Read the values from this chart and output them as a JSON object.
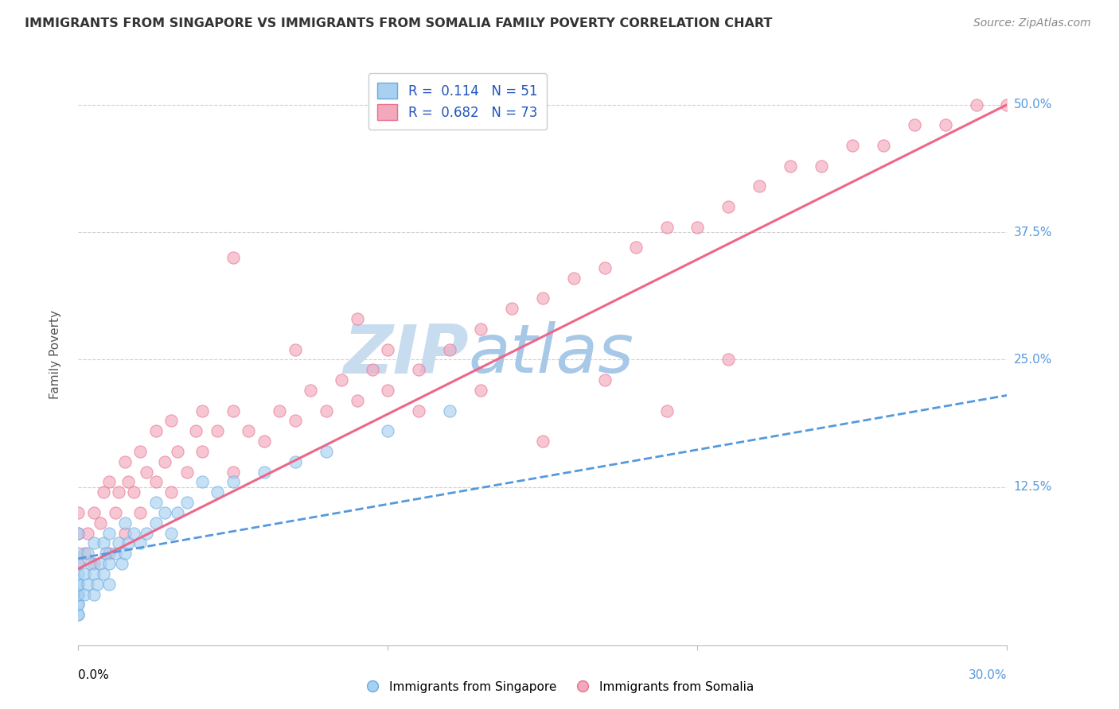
{
  "title": "IMMIGRANTS FROM SINGAPORE VS IMMIGRANTS FROM SOMALIA FAMILY POVERTY CORRELATION CHART",
  "source": "Source: ZipAtlas.com",
  "ylabel": "Family Poverty",
  "xaxis_label_left": "0.0%",
  "xaxis_label_right": "30.0%",
  "yaxis_ticks_vals": [
    0.125,
    0.25,
    0.375,
    0.5
  ],
  "yaxis_ticks_labels": [
    "12.5%",
    "25.0%",
    "37.5%",
    "50.0%"
  ],
  "xlim": [
    0.0,
    0.3
  ],
  "ylim": [
    -0.03,
    0.54
  ],
  "singapore_R": 0.114,
  "singapore_N": 51,
  "somalia_R": 0.682,
  "somalia_N": 73,
  "singapore_color": "#A8D0F0",
  "somalia_color": "#F4A8BC",
  "singapore_edge_color": "#6AAAE0",
  "somalia_edge_color": "#E87090",
  "singapore_line_color": "#5599DD",
  "somalia_line_color": "#EE6688",
  "watermark_zip": "ZIP",
  "watermark_atlas": "atlas",
  "watermark_color_zip": "#C8DCF0",
  "watermark_color_atlas": "#A8C8E8",
  "background_color": "#FFFFFF",
  "grid_color": "#CCCCCC",
  "legend_text_color": "#2255BB",
  "title_color": "#333333",
  "source_color": "#888888",
  "ylabel_color": "#555555",
  "singapore_scatter_x": [
    0.0,
    0.0,
    0.0,
    0.0,
    0.0,
    0.0,
    0.0,
    0.0,
    0.0,
    0.0,
    0.0,
    0.0,
    0.002,
    0.002,
    0.003,
    0.003,
    0.004,
    0.005,
    0.005,
    0.005,
    0.006,
    0.007,
    0.008,
    0.008,
    0.009,
    0.01,
    0.01,
    0.01,
    0.012,
    0.013,
    0.014,
    0.015,
    0.015,
    0.016,
    0.018,
    0.02,
    0.022,
    0.025,
    0.025,
    0.028,
    0.03,
    0.032,
    0.035,
    0.04,
    0.045,
    0.05,
    0.06,
    0.07,
    0.08,
    0.1,
    0.12
  ],
  "singapore_scatter_y": [
    0.0,
    0.0,
    0.01,
    0.01,
    0.02,
    0.02,
    0.03,
    0.03,
    0.04,
    0.05,
    0.06,
    0.08,
    0.02,
    0.04,
    0.03,
    0.06,
    0.05,
    0.02,
    0.04,
    0.07,
    0.03,
    0.05,
    0.04,
    0.07,
    0.06,
    0.03,
    0.05,
    0.08,
    0.06,
    0.07,
    0.05,
    0.06,
    0.09,
    0.07,
    0.08,
    0.07,
    0.08,
    0.09,
    0.11,
    0.1,
    0.08,
    0.1,
    0.11,
    0.13,
    0.12,
    0.13,
    0.14,
    0.15,
    0.16,
    0.18,
    0.2
  ],
  "somalia_scatter_x": [
    0.0,
    0.0,
    0.0,
    0.002,
    0.003,
    0.005,
    0.005,
    0.007,
    0.008,
    0.01,
    0.01,
    0.012,
    0.013,
    0.015,
    0.015,
    0.016,
    0.018,
    0.02,
    0.02,
    0.022,
    0.025,
    0.025,
    0.028,
    0.03,
    0.03,
    0.032,
    0.035,
    0.038,
    0.04,
    0.04,
    0.045,
    0.05,
    0.05,
    0.055,
    0.06,
    0.065,
    0.07,
    0.075,
    0.08,
    0.085,
    0.09,
    0.095,
    0.1,
    0.1,
    0.11,
    0.12,
    0.13,
    0.14,
    0.15,
    0.16,
    0.17,
    0.18,
    0.19,
    0.2,
    0.21,
    0.22,
    0.23,
    0.24,
    0.25,
    0.26,
    0.27,
    0.28,
    0.29,
    0.3,
    0.05,
    0.07,
    0.09,
    0.11,
    0.13,
    0.15,
    0.17,
    0.19,
    0.21
  ],
  "somalia_scatter_y": [
    0.05,
    0.08,
    0.1,
    0.06,
    0.08,
    0.05,
    0.1,
    0.09,
    0.12,
    0.06,
    0.13,
    0.1,
    0.12,
    0.08,
    0.15,
    0.13,
    0.12,
    0.1,
    0.16,
    0.14,
    0.13,
    0.18,
    0.15,
    0.12,
    0.19,
    0.16,
    0.14,
    0.18,
    0.16,
    0.2,
    0.18,
    0.14,
    0.2,
    0.18,
    0.17,
    0.2,
    0.19,
    0.22,
    0.2,
    0.23,
    0.21,
    0.24,
    0.22,
    0.26,
    0.24,
    0.26,
    0.28,
    0.3,
    0.31,
    0.33,
    0.34,
    0.36,
    0.38,
    0.38,
    0.4,
    0.42,
    0.44,
    0.44,
    0.46,
    0.46,
    0.48,
    0.48,
    0.5,
    0.5,
    0.35,
    0.26,
    0.29,
    0.2,
    0.22,
    0.17,
    0.23,
    0.2,
    0.25
  ],
  "somalia_line_x0": 0.0,
  "somalia_line_y0": 0.045,
  "somalia_line_x1": 0.3,
  "somalia_line_y1": 0.5,
  "singapore_line_x0": 0.0,
  "singapore_line_y0": 0.055,
  "singapore_line_x1": 0.3,
  "singapore_line_y1": 0.215
}
